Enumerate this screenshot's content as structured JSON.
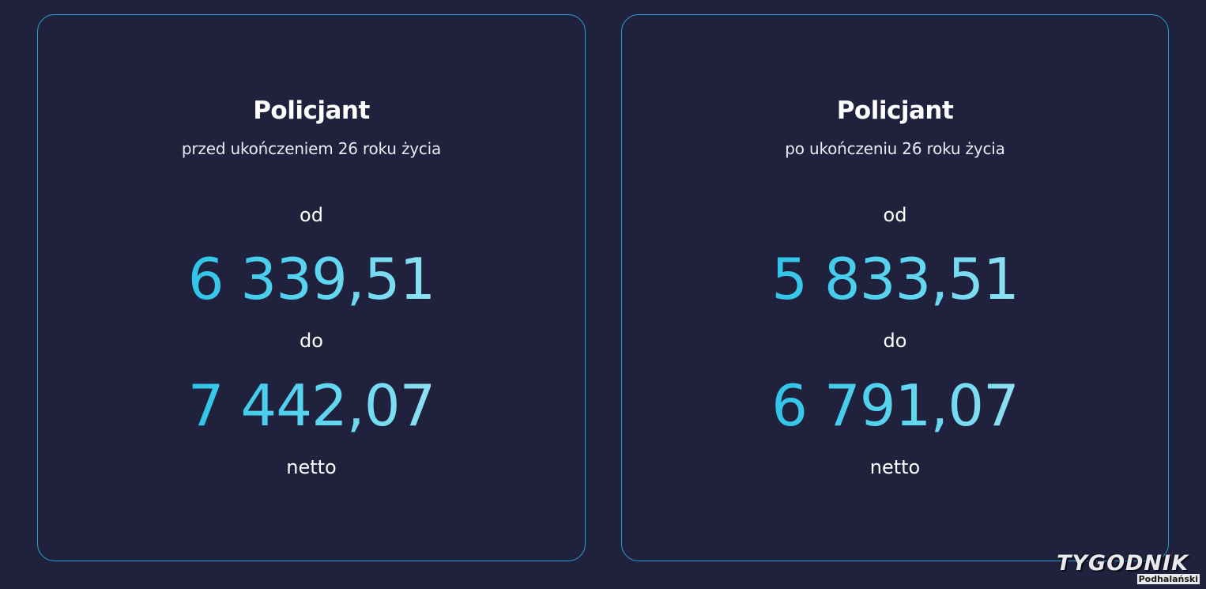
{
  "cards": [
    {
      "title": "Policjant",
      "subtitle": "przed ukończeniem 26 roku życia",
      "from_label": "od",
      "from_amount": "6 339,51",
      "to_label": "do",
      "to_amount": "7 442,07",
      "suffix": "netto"
    },
    {
      "title": "Policjant",
      "subtitle": "po ukończeniu 26 roku życia",
      "from_label": "od",
      "from_amount": "5 833,51",
      "to_label": "do",
      "to_amount": "6 791,07",
      "suffix": "netto"
    }
  ],
  "watermark": {
    "top": "TYGODNIK",
    "bottom": "Podhalański"
  },
  "colors": {
    "background": "#20223d",
    "card_border": "#2a9fcf",
    "amount_gradient_start": "#2ec4e8",
    "amount_gradient_end": "#8fe1f2"
  }
}
